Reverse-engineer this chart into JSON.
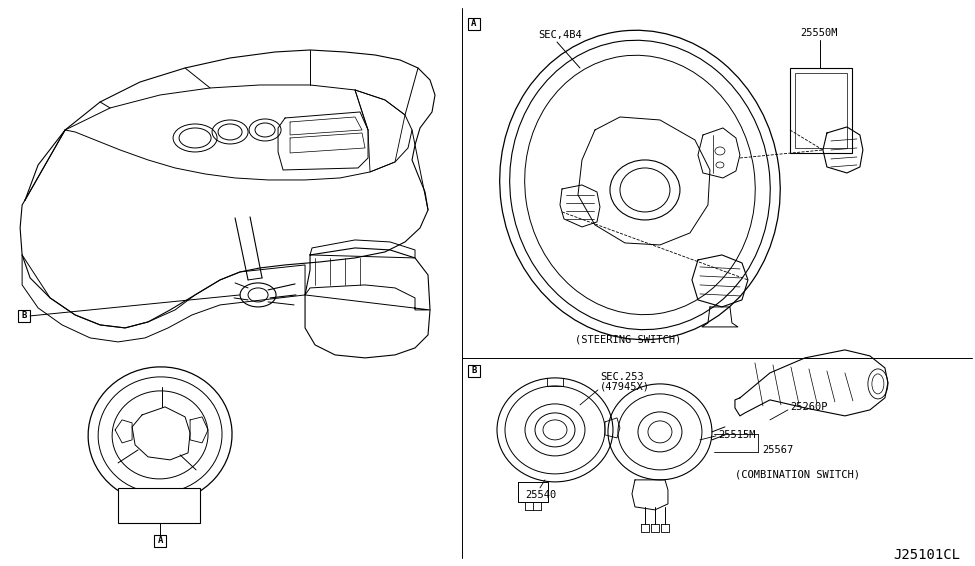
{
  "bg_color": "#ffffff",
  "line_color": "#000000",
  "fig_width": 9.75,
  "fig_height": 5.66,
  "label_SEC4B4": "SEC,4B4",
  "label_25550M": "25550M",
  "label_steering_switch": "(STEERING SWITCH)",
  "label_SEC253": "SEC.253",
  "label_47945X": "(47945X)",
  "label_25260P": "25260P",
  "label_25515M": "25515M",
  "label_25567": "25567",
  "label_25540": "25540",
  "label_combo_switch": "(COMBINATION SWITCH)",
  "label_J25101CL": "J25101CL",
  "fs": 7.5
}
